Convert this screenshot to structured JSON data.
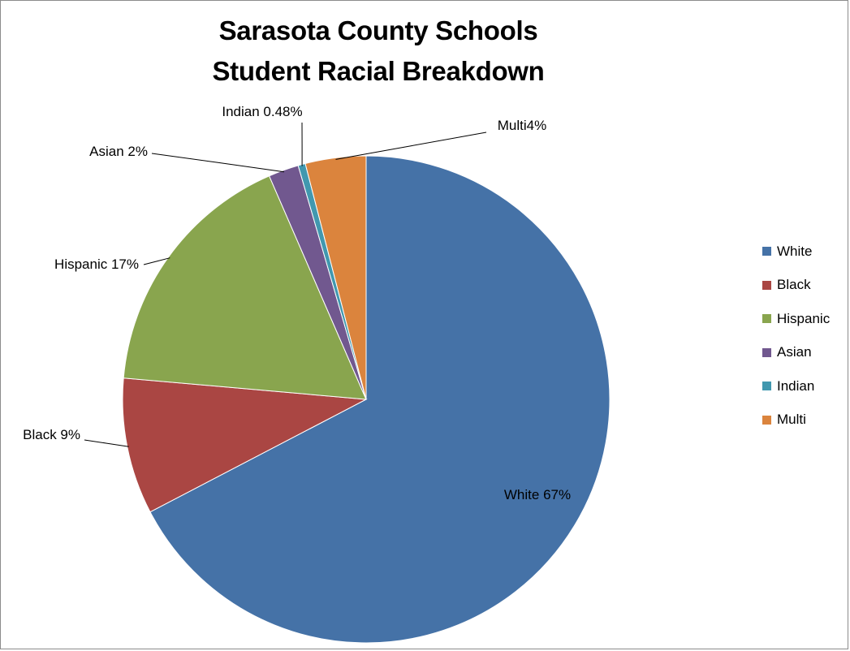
{
  "chart_data": {
    "type": "pie",
    "title": "Sarasota County Schools Student Racial Breakdown",
    "title_lines": [
      "Sarasota County Schools",
      "Student Racial Breakdown"
    ],
    "categories": [
      "White",
      "Black",
      "Hispanic",
      "Asian",
      "Indian",
      "Multi"
    ],
    "values": [
      67,
      9,
      17,
      2,
      0.48,
      4
    ],
    "colors": [
      "#4572A7",
      "#AA4643",
      "#89A54E",
      "#71588F",
      "#4198AF",
      "#DB843D"
    ],
    "data_labels": [
      "White 67%",
      "Black 9%",
      "Hispanic 17%",
      "Asian 2%",
      "Indian 0.48%",
      "Multi4%"
    ],
    "legend_position": "right",
    "start_angle": "top, clockwise"
  }
}
